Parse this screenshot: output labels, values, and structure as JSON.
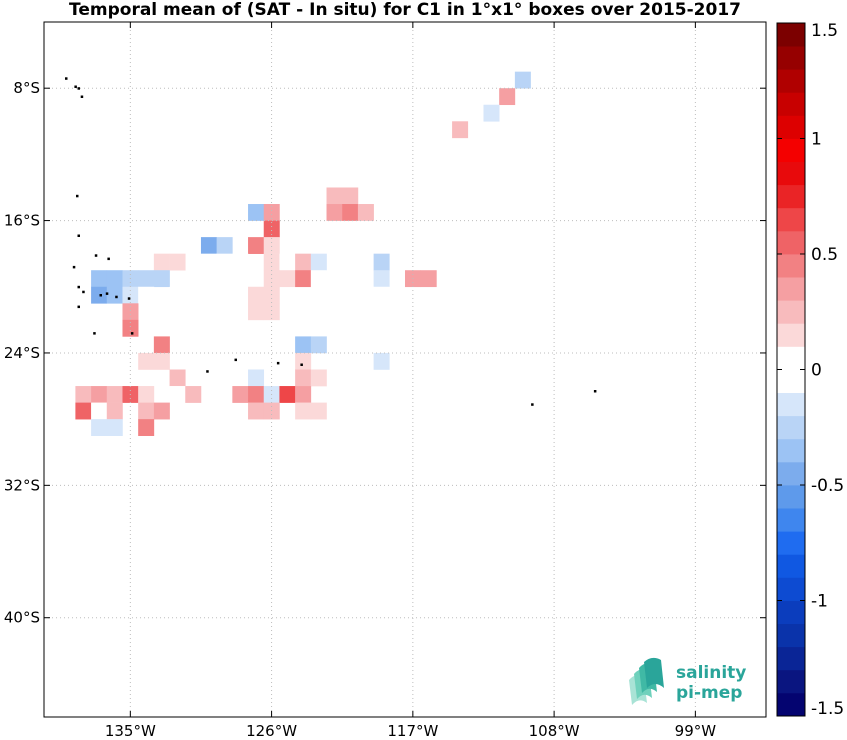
{
  "title": "Temporal mean of (SAT - In situ) for C1 in 1°x1° boxes over 2015-2017",
  "chart_data": {
    "type": "heatmap",
    "title": "Temporal mean of (SAT - In situ) for C1 in 1°x1° boxes over 2015-2017",
    "x_range": [
      -140.5,
      -94.5
    ],
    "y_range": [
      -46,
      -4
    ],
    "x_ticks": [
      {
        "value": -135,
        "label": "135°W"
      },
      {
        "value": -126,
        "label": "126°W"
      },
      {
        "value": -117,
        "label": "117°W"
      },
      {
        "value": -108,
        "label": "108°W"
      },
      {
        "value": -99,
        "label": "99°W"
      }
    ],
    "y_ticks": [
      {
        "value": -8,
        "label": "8°S"
      },
      {
        "value": -16,
        "label": "16°S"
      },
      {
        "value": -24,
        "label": "24°S"
      },
      {
        "value": -32,
        "label": "32°S"
      },
      {
        "value": -40,
        "label": "40°S"
      }
    ],
    "grid": "dotted",
    "colorbar": {
      "range": [
        -1.5,
        1.5
      ],
      "step": 0.1,
      "ticks": [
        {
          "value": 1.5,
          "label": "1.5"
        },
        {
          "value": 1,
          "label": "1"
        },
        {
          "value": 0.5,
          "label": "0.5"
        },
        {
          "value": 0,
          "label": "0"
        },
        {
          "value": -0.5,
          "label": "-0.5"
        },
        {
          "value": -1,
          "label": "-1"
        },
        {
          "value": -1.5,
          "label": "-1.5"
        }
      ],
      "colors": [
        "#040470",
        "#0a1580",
        "#0a2596",
        "#0a33aa",
        "#0b3dbd",
        "#0d4bd2",
        "#1058e2",
        "#1f6cf0",
        "#3f86ee",
        "#5e9aeb",
        "#7caced",
        "#9cc3f4",
        "#b9d4f6",
        "#d6e6fa",
        "#ffffff",
        "#ffffff",
        "#fbd9d9",
        "#f8bbbd",
        "#f59fa2",
        "#f28183",
        "#ef6366",
        "#ee4648",
        "#ea2426",
        "#e80a0c",
        "#f40000",
        "#dd0000",
        "#c80000",
        "#b00000",
        "#960000",
        "#7c0000"
      ]
    },
    "cells": [
      {
        "lon": -111,
        "lat": -7.5,
        "value": -0.1
      },
      {
        "lon": -110,
        "lat": -7.5,
        "value": -0.3
      },
      {
        "lon": -111,
        "lat": -8.5,
        "value": 0.3
      },
      {
        "lon": -112,
        "lat": -9.5,
        "value": -0.2
      },
      {
        "lon": -114,
        "lat": -10.5,
        "value": 0.2
      },
      {
        "lon": -116,
        "lat": -13.5,
        "value": -0.1
      },
      {
        "lon": -122,
        "lat": -14.5,
        "value": 0.2
      },
      {
        "lon": -121,
        "lat": -14.5,
        "value": 0.2
      },
      {
        "lon": -127,
        "lat": -15.5,
        "value": -0.4
      },
      {
        "lon": -126,
        "lat": -15.5,
        "value": 0.3
      },
      {
        "lon": -122,
        "lat": -15.5,
        "value": 0.3
      },
      {
        "lon": -121,
        "lat": -15.5,
        "value": 0.4
      },
      {
        "lon": -120,
        "lat": -15.5,
        "value": 0.2
      },
      {
        "lon": -126,
        "lat": -16.5,
        "value": 0.5
      },
      {
        "lon": -124,
        "lat": -16.5,
        "value": -0.1
      },
      {
        "lon": -130,
        "lat": -17.5,
        "value": -0.5
      },
      {
        "lon": -129,
        "lat": -17.5,
        "value": -0.3
      },
      {
        "lon": -127,
        "lat": -17.5,
        "value": 0.4
      },
      {
        "lon": -126,
        "lat": -17.5,
        "value": 0.1
      },
      {
        "lon": -123,
        "lat": -17.5,
        "value": -0.1
      },
      {
        "lon": -133,
        "lat": -18.5,
        "value": 0.1
      },
      {
        "lon": -132,
        "lat": -18.5,
        "value": 0.1
      },
      {
        "lon": -130,
        "lat": -18.5,
        "value": -0.1
      },
      {
        "lon": -129,
        "lat": -18.5,
        "value": -0.1
      },
      {
        "lon": -128,
        "lat": -18.5,
        "value": -0.1
      },
      {
        "lon": -126,
        "lat": -18.5,
        "value": 0.1
      },
      {
        "lon": -125,
        "lat": -18.5,
        "value": -0.1
      },
      {
        "lon": -124,
        "lat": -18.5,
        "value": 0.2
      },
      {
        "lon": -123,
        "lat": -18.5,
        "value": -0.2
      },
      {
        "lon": -120,
        "lat": -18.5,
        "value": -0.1
      },
      {
        "lon": -119,
        "lat": -18.5,
        "value": -0.3
      },
      {
        "lon": -137,
        "lat": -19.5,
        "value": -0.4
      },
      {
        "lon": -136,
        "lat": -19.5,
        "value": -0.4
      },
      {
        "lon": -135,
        "lat": -19.5,
        "value": -0.3
      },
      {
        "lon": -134,
        "lat": -19.5,
        "value": -0.3
      },
      {
        "lon": -133,
        "lat": -19.5,
        "value": -0.3
      },
      {
        "lon": -130,
        "lat": -19.5,
        "value": -0.1
      },
      {
        "lon": -126,
        "lat": -19.5,
        "value": 0.1
      },
      {
        "lon": -125,
        "lat": -19.5,
        "value": 0.1
      },
      {
        "lon": -124,
        "lat": -19.5,
        "value": 0.4
      },
      {
        "lon": -123,
        "lat": -19.5,
        "value": -0.1
      },
      {
        "lon": -119,
        "lat": -19.5,
        "value": -0.2
      },
      {
        "lon": -117,
        "lat": -19.5,
        "value": 0.3
      },
      {
        "lon": -116,
        "lat": -19.5,
        "value": 0.3
      },
      {
        "lon": -137,
        "lat": -20.5,
        "value": -0.5
      },
      {
        "lon": -136,
        "lat": -20.5,
        "value": -0.4
      },
      {
        "lon": -135,
        "lat": -20.5,
        "value": -0.2
      },
      {
        "lon": -134,
        "lat": -20.5,
        "value": -0.1
      },
      {
        "lon": -132,
        "lat": -20.5,
        "value": -0.1
      },
      {
        "lon": -131,
        "lat": -20.5,
        "value": -0.1
      },
      {
        "lon": -129,
        "lat": -20.5,
        "value": -0.1
      },
      {
        "lon": -127,
        "lat": -20.5,
        "value": 0.1
      },
      {
        "lon": -126,
        "lat": -20.5,
        "value": 0.1
      },
      {
        "lon": -120,
        "lat": -20.5,
        "value": -0.1
      },
      {
        "lon": -119,
        "lat": -20.5,
        "value": -0.1
      },
      {
        "lon": -135,
        "lat": -21.5,
        "value": 0.3
      },
      {
        "lon": -131,
        "lat": -21.5,
        "value": -0.1
      },
      {
        "lon": -127,
        "lat": -21.5,
        "value": 0.1
      },
      {
        "lon": -126,
        "lat": -21.5,
        "value": 0.1
      },
      {
        "lon": -135,
        "lat": -22.5,
        "value": 0.4
      },
      {
        "lon": -133,
        "lat": -23.5,
        "value": 0.4
      },
      {
        "lon": -131,
        "lat": -23.5,
        "value": -0.1
      },
      {
        "lon": -124,
        "lat": -23.5,
        "value": -0.4
      },
      {
        "lon": -123,
        "lat": -23.5,
        "value": -0.3
      },
      {
        "lon": -134,
        "lat": -24.5,
        "value": 0.1
      },
      {
        "lon": -133,
        "lat": -24.5,
        "value": 0.1
      },
      {
        "lon": -131,
        "lat": -24.5,
        "value": -0.1
      },
      {
        "lon": -130,
        "lat": -24.5,
        "value": -0.1
      },
      {
        "lon": -129,
        "lat": -24.5,
        "value": -0.1
      },
      {
        "lon": -128,
        "lat": -24.5,
        "value": -0.1
      },
      {
        "lon": -127,
        "lat": -24.5,
        "value": -0.1
      },
      {
        "lon": -126,
        "lat": -24.5,
        "value": -0.1
      },
      {
        "lon": -125,
        "lat": -24.5,
        "value": -0.1
      },
      {
        "lon": -124,
        "lat": -24.5,
        "value": 0.1
      },
      {
        "lon": -119,
        "lat": -24.5,
        "value": -0.2
      },
      {
        "lon": -132,
        "lat": -25.5,
        "value": 0.2
      },
      {
        "lon": -127,
        "lat": -25.5,
        "value": -0.2
      },
      {
        "lon": -124,
        "lat": -25.5,
        "value": 0.2
      },
      {
        "lon": -123,
        "lat": -25.5,
        "value": 0.1
      },
      {
        "lon": -138,
        "lat": -26.5,
        "value": 0.2
      },
      {
        "lon": -137,
        "lat": -26.5,
        "value": 0.3
      },
      {
        "lon": -136,
        "lat": -26.5,
        "value": 0.2
      },
      {
        "lon": -135,
        "lat": -26.5,
        "value": 0.5
      },
      {
        "lon": -134,
        "lat": -26.5,
        "value": 0.1
      },
      {
        "lon": -132,
        "lat": -26.5,
        "value": -0.1
      },
      {
        "lon": -131,
        "lat": -26.5,
        "value": 0.2
      },
      {
        "lon": -128,
        "lat": -26.5,
        "value": 0.3
      },
      {
        "lon": -127,
        "lat": -26.5,
        "value": 0.4
      },
      {
        "lon": -126,
        "lat": -26.5,
        "value": -0.2
      },
      {
        "lon": -125,
        "lat": -26.5,
        "value": 0.6
      },
      {
        "lon": -124,
        "lat": -26.5,
        "value": 0.3
      },
      {
        "lon": -138,
        "lat": -27.5,
        "value": 0.5
      },
      {
        "lon": -137,
        "lat": -27.5,
        "value": -0.1
      },
      {
        "lon": -136,
        "lat": -27.5,
        "value": 0.2
      },
      {
        "lon": -134,
        "lat": -27.5,
        "value": 0.2
      },
      {
        "lon": -133,
        "lat": -27.5,
        "value": 0.3
      },
      {
        "lon": -127,
        "lat": -27.5,
        "value": 0.2
      },
      {
        "lon": -126,
        "lat": -27.5,
        "value": 0.2
      },
      {
        "lon": -124,
        "lat": -27.5,
        "value": 0.1
      },
      {
        "lon": -123,
        "lat": -27.5,
        "value": 0.1
      },
      {
        "lon": -137,
        "lat": -28.5,
        "value": -0.2
      },
      {
        "lon": -136,
        "lat": -28.5,
        "value": -0.2
      },
      {
        "lon": -134,
        "lat": -28.5,
        "value": 0.4
      }
    ],
    "land": [
      [
        -139.1,
        -7.4
      ],
      [
        -138.5,
        -7.9
      ],
      [
        -138.3,
        -8.0
      ],
      [
        -138.1,
        -8.5
      ],
      [
        -138.4,
        -14.5
      ],
      [
        -138.3,
        -16.9
      ],
      [
        -137.2,
        -18.1
      ],
      [
        -136.4,
        -18.3
      ],
      [
        -138.6,
        -18.8
      ],
      [
        -138.3,
        -20.0
      ],
      [
        -136.9,
        -20.5
      ],
      [
        -136.5,
        -20.4
      ],
      [
        -135.9,
        -20.6
      ],
      [
        -135.1,
        -20.7
      ],
      [
        -138.3,
        -21.2
      ],
      [
        -138.0,
        -20.3
      ],
      [
        -134.9,
        -22.8
      ],
      [
        -137.3,
        -22.8
      ],
      [
        -130.1,
        -25.1
      ],
      [
        -128.3,
        -24.4
      ],
      [
        -125.6,
        -24.6
      ],
      [
        -124.1,
        -24.7
      ],
      [
        -109.4,
        -27.1
      ],
      [
        -105.4,
        -26.3
      ]
    ],
    "logo": {
      "line1": "salinity",
      "line2": "pi-mep"
    }
  }
}
